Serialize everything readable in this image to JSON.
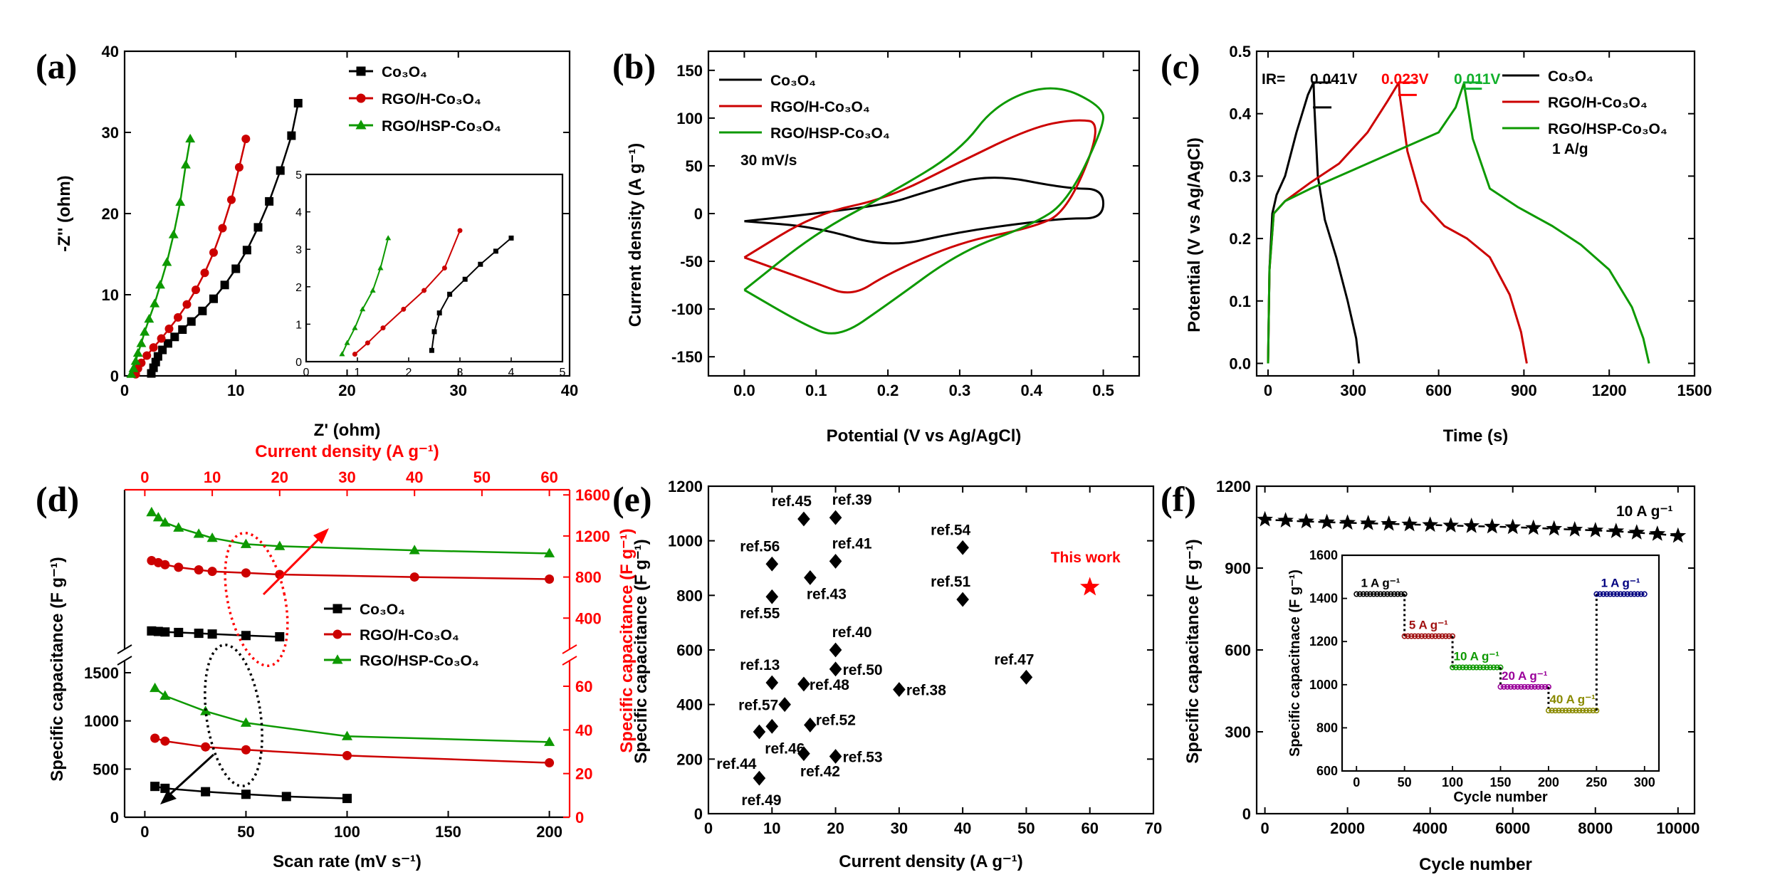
{
  "colors": {
    "black": "#000000",
    "red": "#cc0000",
    "green": "#0d9900",
    "bright_red": "#ff0000",
    "brown": "#a01010",
    "purple": "#9a009a",
    "olive": "#8a8a00",
    "navy": "#000080",
    "ir_green": "#12b02c"
  },
  "chart_data": [
    {
      "id": "a",
      "type": "scatter",
      "panel_label": "(a)",
      "xlabel": "Z' (ohm)",
      "ylabel": "-Z'' (ohm)",
      "xlim": [
        0,
        40
      ],
      "ylim": [
        0,
        40
      ],
      "xticks": [
        "0",
        "10",
        "20",
        "30",
        "40"
      ],
      "yticks": [
        "0",
        "10",
        "20",
        "30",
        "40"
      ],
      "series": [
        {
          "name": "Co₃O₄",
          "color": "#000000",
          "marker": "square",
          "x": [
            2.4,
            2.6,
            2.8,
            3.0,
            3.4,
            3.9,
            4.5,
            5.2,
            6.0,
            7.0,
            8.0,
            9.0,
            10.0,
            11.0,
            12.0,
            13.0,
            14.0,
            15.0,
            15.6
          ],
          "y": [
            0.3,
            1.0,
            1.7,
            2.4,
            3.2,
            4.0,
            4.8,
            5.7,
            6.7,
            8.0,
            9.5,
            11.2,
            13.2,
            15.5,
            18.3,
            21.5,
            25.3,
            29.6,
            33.6
          ]
        },
        {
          "name": "RGO/H-Co₃O₄",
          "color": "#cc0000",
          "marker": "circle",
          "x": [
            1.0,
            1.2,
            1.5,
            2.0,
            2.6,
            3.3,
            4.0,
            4.8,
            5.6,
            6.4,
            7.2,
            8.0,
            8.8,
            9.6,
            10.3,
            10.9
          ],
          "y": [
            0.2,
            0.9,
            1.6,
            2.5,
            3.5,
            4.6,
            5.8,
            7.2,
            8.8,
            10.6,
            12.7,
            15.2,
            18.2,
            21.7,
            25.7,
            29.2
          ]
        },
        {
          "name": "RGO/HSP-Co₃O₄",
          "color": "#0d9900",
          "marker": "triangle",
          "x": [
            0.6,
            0.8,
            1.0,
            1.2,
            1.5,
            1.8,
            2.2,
            2.7,
            3.2,
            3.8,
            4.4,
            5.0,
            5.5,
            5.9
          ],
          "y": [
            0.2,
            0.9,
            1.8,
            2.8,
            4.0,
            5.4,
            7.0,
            8.9,
            11.2,
            14.0,
            17.4,
            21.4,
            26.0,
            29.2
          ]
        }
      ],
      "inset": {
        "xlim": [
          0,
          5
        ],
        "ylim": [
          0,
          5
        ],
        "xticks": [
          "0",
          "1",
          "2",
          "3",
          "4",
          "5"
        ],
        "yticks": [
          "0",
          "1",
          "2",
          "3",
          "4",
          "5"
        ]
      }
    },
    {
      "id": "b",
      "type": "line",
      "panel_label": "(b)",
      "xlabel": "Potential (V vs Ag/AgCl)",
      "ylabel": "Current density (A g⁻¹)",
      "xlim": [
        -0.05,
        0.55
      ],
      "ylim": [
        -170,
        170
      ],
      "xticks": [
        "0.0",
        "0.1",
        "0.2",
        "0.3",
        "0.4",
        "0.5"
      ],
      "yticks": [
        "-150",
        "-100",
        "-50",
        "0",
        "50",
        "100",
        "150"
      ],
      "annotation": "30 mV/s",
      "series": [
        {
          "name": "Co₃O₄",
          "color": "#000000",
          "x": [
            0.0,
            0.1,
            0.2,
            0.3,
            0.4,
            0.45,
            0.5,
            0.5,
            0.45,
            0.34,
            0.25,
            0.2,
            0.1,
            0.0
          ],
          "y": [
            -8,
            -14,
            -36,
            -19,
            -9,
            -5,
            -5,
            26,
            26,
            42,
            22,
            10,
            0,
            -8
          ]
        },
        {
          "name": "RGO/H-Co₃O₄",
          "color": "#cc0000",
          "x": [
            0.0,
            0.1,
            0.15,
            0.2,
            0.3,
            0.4,
            0.45,
            0.5,
            0.46,
            0.4,
            0.3,
            0.2,
            0.1,
            0.0
          ],
          "y": [
            -46,
            -73,
            -87,
            -63,
            -30,
            -15,
            2,
            95,
            99,
            90,
            54,
            16,
            0,
            -46
          ]
        },
        {
          "name": "RGO/HSP-Co₃O₄",
          "color": "#0d9900",
          "x": [
            0.0,
            0.08,
            0.13,
            0.2,
            0.3,
            0.4,
            0.45,
            0.5,
            0.5,
            0.43,
            0.35,
            0.3,
            0.2,
            0.1,
            0.0
          ],
          "y": [
            -80,
            -115,
            -131,
            -95,
            -40,
            -12,
            12,
            90,
            112,
            137,
            115,
            65,
            20,
            -20,
            -80
          ]
        }
      ]
    },
    {
      "id": "c",
      "type": "line",
      "panel_label": "(c)",
      "xlabel": "Time (s)",
      "ylabel": "Potential (V vs Ag/AgCl)",
      "xlim": [
        -40,
        1500
      ],
      "ylim": [
        -0.02,
        0.5
      ],
      "xticks": [
        "0",
        "300",
        "600",
        "900",
        "1200",
        "1500"
      ],
      "yticks": [
        "0.0",
        "0.1",
        "0.2",
        "0.3",
        "0.4",
        "0.5"
      ],
      "ir_label": "IR=",
      "ir_values": [
        {
          "text": "0.041V",
          "color": "#000000"
        },
        {
          "text": "0.023V",
          "color": "#ff0000"
        },
        {
          "text": "0.011V",
          "color": "#12b02c"
        }
      ],
      "annotation": "1 A/g",
      "series": [
        {
          "name": "Co₃O₄",
          "color": "#000000",
          "x": [
            0,
            5,
            15,
            30,
            60,
            100,
            140,
            160,
            163,
            175,
            200,
            240,
            280,
            310,
            320
          ],
          "y": [
            0,
            0.15,
            0.24,
            0.27,
            0.3,
            0.37,
            0.43,
            0.45,
            0.41,
            0.3,
            0.23,
            0.17,
            0.1,
            0.04,
            0
          ]
        },
        {
          "name": "RGO/H-Co₃O₄",
          "color": "#cc0000",
          "x": [
            0,
            5,
            20,
            60,
            150,
            250,
            350,
            420,
            460,
            463,
            490,
            540,
            620,
            700,
            780,
            850,
            890,
            910
          ],
          "y": [
            0,
            0.15,
            0.24,
            0.26,
            0.29,
            0.32,
            0.37,
            0.42,
            0.45,
            0.43,
            0.34,
            0.26,
            0.22,
            0.2,
            0.17,
            0.11,
            0.05,
            0
          ]
        },
        {
          "name": "RGO/HSP-Co₃O₄",
          "color": "#0d9900",
          "x": [
            0,
            5,
            20,
            60,
            150,
            300,
            450,
            600,
            660,
            690,
            692,
            720,
            780,
            880,
            1000,
            1100,
            1200,
            1280,
            1320,
            1340
          ],
          "y": [
            0,
            0.15,
            0.24,
            0.26,
            0.28,
            0.31,
            0.34,
            0.37,
            0.41,
            0.45,
            0.44,
            0.36,
            0.28,
            0.25,
            0.22,
            0.19,
            0.15,
            0.09,
            0.04,
            0
          ]
        }
      ]
    },
    {
      "id": "d",
      "type": "line",
      "panel_label": "(d)",
      "xlabel": "Scan rate (mV s⁻¹)",
      "ylabel": "Specific capacitance (F g⁻¹)",
      "xlim": [
        -10,
        210
      ],
      "ylim": [
        0,
        1500
      ],
      "xticks": [
        "0",
        "50",
        "100",
        "150",
        "200"
      ],
      "yticks": [
        "0",
        "500",
        "1000",
        "1500"
      ],
      "top_xlabel": "Current density (A g⁻¹)",
      "top_xlim": [
        -3,
        63
      ],
      "top_xticks": [
        "0",
        "10",
        "20",
        "30",
        "40",
        "50",
        "60"
      ],
      "right_ylabel": "Specific capacitance (F g⁻¹)",
      "right_yticks_lower": [
        "0",
        "20",
        "40",
        "60"
      ],
      "right_yticks_upper": [
        "400",
        "800",
        "1200",
        "1600"
      ],
      "scan_series": [
        {
          "name": "Co₃O₄",
          "color": "#000000",
          "marker": "square",
          "x": [
            5,
            10,
            30,
            50,
            70,
            100
          ],
          "y": [
            320,
            300,
            265,
            238,
            215,
            195
          ]
        },
        {
          "name": "RGO/H-Co₃O₄",
          "color": "#cc0000",
          "marker": "circle",
          "x": [
            5,
            10,
            30,
            50,
            100,
            200
          ],
          "y": [
            820,
            790,
            730,
            700,
            640,
            565
          ]
        },
        {
          "name": "RGO/HSP-Co₃O₄",
          "color": "#0d9900",
          "marker": "triangle",
          "x": [
            5,
            10,
            30,
            50,
            100,
            200
          ],
          "y": [
            1340,
            1260,
            1100,
            980,
            840,
            780
          ]
        }
      ],
      "current_series": [
        {
          "name": "Co₃O₄",
          "color": "#000000",
          "marker": "square",
          "x": [
            1,
            2,
            3,
            5,
            8,
            10,
            15,
            20
          ],
          "y": [
            275,
            270,
            265,
            260,
            252,
            245,
            230,
            218
          ]
        },
        {
          "name": "RGO/H-Co₃O₄",
          "color": "#cc0000",
          "marker": "circle",
          "x": [
            1,
            2,
            3,
            5,
            8,
            10,
            15,
            20,
            40,
            60
          ],
          "y": [
            960,
            940,
            920,
            895,
            870,
            855,
            840,
            825,
            800,
            780
          ]
        },
        {
          "name": "RGO/HSP-Co₃O₄",
          "color": "#0d9900",
          "marker": "triangle",
          "x": [
            1,
            2,
            3,
            5,
            8,
            10,
            15,
            20,
            40,
            60
          ],
          "y": [
            1430,
            1380,
            1330,
            1280,
            1220,
            1180,
            1120,
            1100,
            1060,
            1030
          ]
        }
      ]
    },
    {
      "id": "e",
      "type": "scatter",
      "panel_label": "(e)",
      "xlabel": "Current density (A g⁻¹)",
      "ylabel": "Specific capacitance (F g⁻¹)",
      "xlim": [
        0,
        70
      ],
      "ylim": [
        0,
        1200
      ],
      "xticks": [
        "0",
        "10",
        "20",
        "30",
        "40",
        "50",
        "60",
        "70"
      ],
      "yticks": [
        "0",
        "200",
        "400",
        "600",
        "800",
        "1000",
        "1200"
      ],
      "points": [
        {
          "label": "ref.45",
          "x": 15,
          "y": 1080
        },
        {
          "label": "ref.39",
          "x": 20,
          "y": 1085
        },
        {
          "label": "ref.56",
          "x": 10,
          "y": 915
        },
        {
          "label": "ref.41",
          "x": 20,
          "y": 925
        },
        {
          "label": "ref.43",
          "x": 16,
          "y": 865
        },
        {
          "label": "ref.55",
          "x": 10,
          "y": 795
        },
        {
          "label": "ref.54",
          "x": 40,
          "y": 975
        },
        {
          "label": "ref.51",
          "x": 40,
          "y": 785
        },
        {
          "label": "ref.40",
          "x": 20,
          "y": 600
        },
        {
          "label": "ref.13",
          "x": 10,
          "y": 480
        },
        {
          "label": "ref.50",
          "x": 20,
          "y": 530
        },
        {
          "label": "ref.48",
          "x": 15,
          "y": 475
        },
        {
          "label": "ref.38",
          "x": 30,
          "y": 455
        },
        {
          "label": "ref.47",
          "x": 50,
          "y": 500
        },
        {
          "label": "ref.57",
          "x": 12,
          "y": 400
        },
        {
          "label": "ref.52",
          "x": 16,
          "y": 325
        },
        {
          "label": "ref.44",
          "x": 8,
          "y": 300
        },
        {
          "label": "ref.46",
          "x": 10,
          "y": 320
        },
        {
          "label": "ref.42",
          "x": 15,
          "y": 220
        },
        {
          "label": "ref.53",
          "x": 20,
          "y": 210
        },
        {
          "label": "ref.49",
          "x": 8,
          "y": 130
        }
      ],
      "highlight": {
        "label": "This work",
        "x": 60,
        "y": 830
      }
    },
    {
      "id": "f",
      "type": "scatter",
      "panel_label": "(f)",
      "xlabel": "Cycle number",
      "ylabel": "Specific capacitance (F g⁻¹)",
      "xlim": [
        -200,
        10400
      ],
      "ylim": [
        0,
        1200
      ],
      "xticks": [
        "0",
        "2000",
        "4000",
        "6000",
        "8000",
        "10000"
      ],
      "yticks": [
        "0",
        "300",
        "600",
        "900",
        "1200"
      ],
      "annotation": "10 A g⁻¹",
      "series": [
        {
          "name": "10 A g⁻¹",
          "color": "#000000",
          "marker": "star",
          "x": [
            0,
            500,
            1000,
            1500,
            2000,
            2500,
            3000,
            3500,
            4000,
            4500,
            5000,
            5500,
            6000,
            6500,
            7000,
            7500,
            8000,
            8500,
            9000,
            9500,
            10000
          ],
          "y": [
            1078,
            1074,
            1071,
            1068,
            1066,
            1064,
            1062,
            1060,
            1058,
            1056,
            1054,
            1052,
            1050,
            1047,
            1044,
            1041,
            1038,
            1035,
            1030,
            1025,
            1018
          ]
        }
      ],
      "inset": {
        "xlabel": "Cycle number",
        "ylabel": "Specific capacitnace (F g⁻¹)",
        "xlim": [
          -15,
          315
        ],
        "ylim": [
          600,
          1600
        ],
        "xticks": [
          "0",
          "50",
          "100",
          "150",
          "200",
          "250",
          "300"
        ],
        "yticks": [
          "600",
          "800",
          "1000",
          "1200",
          "1400",
          "1600"
        ],
        "segments": [
          {
            "label": "1 A g⁻¹",
            "color": "#000000",
            "x0": 0,
            "x1": 50,
            "y": 1420
          },
          {
            "label": "5 A g⁻¹",
            "color": "#a01010",
            "x0": 50,
            "x1": 100,
            "y": 1225
          },
          {
            "label": "10 A g⁻¹",
            "color": "#0d9900",
            "x0": 100,
            "x1": 150,
            "y": 1080
          },
          {
            "label": "20 A g⁻¹",
            "color": "#9a009a",
            "x0": 150,
            "x1": 200,
            "y": 990
          },
          {
            "label": "40 A g⁻¹",
            "color": "#8a8a00",
            "x0": 200,
            "x1": 250,
            "y": 880
          },
          {
            "label": "1 A g⁻¹",
            "color": "#000080",
            "x0": 250,
            "x1": 300,
            "y": 1420
          }
        ]
      }
    }
  ]
}
